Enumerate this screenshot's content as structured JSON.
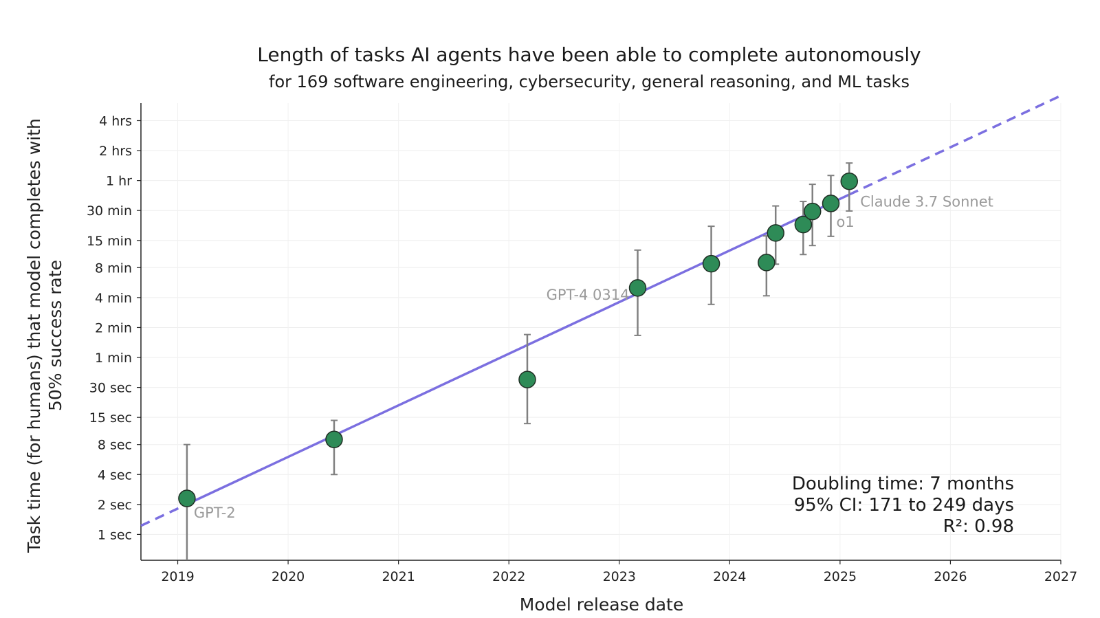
{
  "chart_data": {
    "type": "scatter",
    "title": "Length of tasks AI agents have been able to complete autonomously",
    "subtitle": "for 169 software engineering, cybersecurity, general reasoning, and ML tasks",
    "xlabel": "Model release date",
    "ylabel": "Task time (for humans) that model completes with 50% success rate",
    "x_ticks": [
      "2019",
      "2020",
      "2021",
      "2022",
      "2023",
      "2024",
      "2025",
      "2026",
      "2027"
    ],
    "x_range": [
      "2018-09",
      "2027-01"
    ],
    "y_scale": "log",
    "y_unit": "seconds",
    "y_range": [
      0.55,
      21600
    ],
    "y_ticks": [
      {
        "label": "1 sec",
        "value": 1
      },
      {
        "label": "2 sec",
        "value": 2
      },
      {
        "label": "4 sec",
        "value": 4
      },
      {
        "label": "8 sec",
        "value": 8
      },
      {
        "label": "15 sec",
        "value": 15
      },
      {
        "label": "30 sec",
        "value": 30
      },
      {
        "label": "1 min",
        "value": 60
      },
      {
        "label": "2 min",
        "value": 120
      },
      {
        "label": "4 min",
        "value": 240
      },
      {
        "label": "8 min",
        "value": 480
      },
      {
        "label": "15 min",
        "value": 900
      },
      {
        "label": "30 min",
        "value": 1800
      },
      {
        "label": "1 hr",
        "value": 3600
      },
      {
        "label": "2 hrs",
        "value": 7200
      },
      {
        "label": "4 hrs",
        "value": 14400
      }
    ],
    "points": [
      {
        "date": "2019-02",
        "y": 2.3,
        "ci": [
          0.5,
          8
        ],
        "label": "GPT-2"
      },
      {
        "date": "2020-06",
        "y": 9,
        "ci": [
          4,
          14
        ],
        "label": ""
      },
      {
        "date": "2022-03",
        "y": 36,
        "ci": [
          13,
          102
        ],
        "label": ""
      },
      {
        "date": "2023-03",
        "y": 300,
        "ci": [
          100,
          720
        ],
        "label": "GPT-4 0314"
      },
      {
        "date": "2023-11",
        "y": 525,
        "ci": [
          205,
          1250
        ],
        "label": ""
      },
      {
        "date": "2024-05",
        "y": 540,
        "ci": [
          250,
          1000
        ],
        "label": ""
      },
      {
        "date": "2024-06",
        "y": 1070,
        "ci": [
          520,
          2000
        ],
        "label": ""
      },
      {
        "date": "2024-09",
        "y": 1300,
        "ci": [
          650,
          2220
        ],
        "label": ""
      },
      {
        "date": "2024-10",
        "y": 1760,
        "ci": [
          800,
          3300
        ],
        "label": ""
      },
      {
        "date": "2024-12",
        "y": 2120,
        "ci": [
          990,
          4050
        ],
        "label": "o1"
      },
      {
        "date": "2025-02",
        "y": 3540,
        "ci": [
          1780,
          5400
        ],
        "label": "Claude 3.7 Sonnet"
      }
    ],
    "trend": {
      "solid_from": "2019-02",
      "solid_to": "2025-02",
      "dashed_from": "2018-09",
      "dashed_to": "2027-01",
      "y_at_2019": 1.82,
      "doubling_days": 212,
      "color": "#7b6fe0"
    },
    "marker_color": "#2e8b57",
    "grid": true,
    "stats": {
      "line1": "Doubling time: 7 months",
      "line2": "95% CI: 171 to 249 days",
      "line3": "R²: 0.98",
      "placement": "bottom-right"
    }
  }
}
